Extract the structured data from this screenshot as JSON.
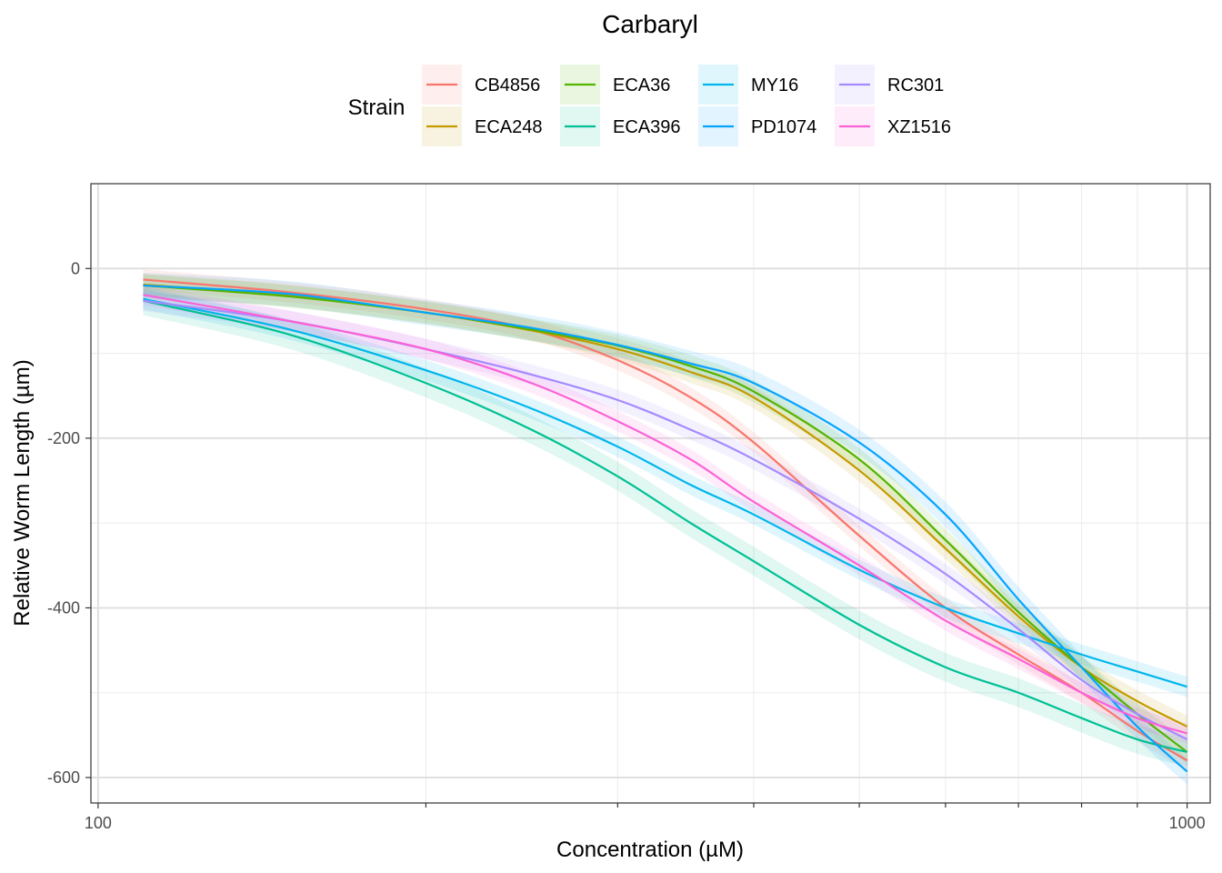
{
  "chart_data": {
    "type": "line",
    "title": "Carbaryl",
    "xlabel": "Concentration (µM)",
    "ylabel": "Relative Worm Length (µm)",
    "x_scale": "log10",
    "xlim": [
      98.5,
      1050
    ],
    "ylim": [
      -630,
      100
    ],
    "x_ticks": [
      100,
      1000
    ],
    "x_tick_labels": [
      "100",
      "1000"
    ],
    "y_ticks": [
      0,
      -200,
      -400,
      -600
    ],
    "y_tick_labels": [
      "0",
      "-200",
      "-400",
      "-600"
    ],
    "grid": true,
    "legend": {
      "title": "Strain",
      "position": "top"
    },
    "x": [
      110,
      150,
      200,
      250,
      300,
      350,
      400,
      500,
      600,
      700,
      800,
      900,
      1000
    ],
    "series": [
      {
        "name": "CB4856",
        "color": "#F8766D",
        "values": [
          -13,
          -28,
          -48,
          -72,
          -108,
          -152,
          -205,
          -315,
          -400,
          -455,
          -500,
          -545,
          -580
        ],
        "band": 12
      },
      {
        "name": "ECA248",
        "color": "#C49A00",
        "values": [
          -19,
          -32,
          -52,
          -73,
          -95,
          -122,
          -152,
          -238,
          -330,
          -410,
          -470,
          -510,
          -540
        ],
        "band": 13
      },
      {
        "name": "ECA36",
        "color": "#53B400",
        "values": [
          -20,
          -33,
          -52,
          -72,
          -91,
          -115,
          -145,
          -225,
          -320,
          -405,
          -470,
          -525,
          -570
        ],
        "band": 13
      },
      {
        "name": "ECA396",
        "color": "#00C094",
        "values": [
          -38,
          -78,
          -135,
          -190,
          -245,
          -300,
          -345,
          -420,
          -470,
          -500,
          -530,
          -555,
          -570
        ],
        "band": 17
      },
      {
        "name": "MY16",
        "color": "#00B6EB",
        "values": [
          -36,
          -72,
          -120,
          -165,
          -210,
          -255,
          -290,
          -355,
          -400,
          -430,
          -455,
          -475,
          -493
        ],
        "band": 12
      },
      {
        "name": "PD1074",
        "color": "#06A4FF",
        "values": [
          -20,
          -30,
          -52,
          -70,
          -90,
          -112,
          -135,
          -205,
          -290,
          -390,
          -470,
          -540,
          -593
        ],
        "band": 15
      },
      {
        "name": "RC301",
        "color": "#A58AFF",
        "values": [
          -38,
          -62,
          -95,
          -125,
          -155,
          -190,
          -225,
          -295,
          -360,
          -425,
          -485,
          -525,
          -555
        ],
        "band": 12
      },
      {
        "name": "XZ1516",
        "color": "#FB61D7",
        "values": [
          -31,
          -62,
          -95,
          -135,
          -180,
          -225,
          -275,
          -350,
          -415,
          -460,
          -500,
          -530,
          -548
        ],
        "band": 12
      }
    ]
  }
}
